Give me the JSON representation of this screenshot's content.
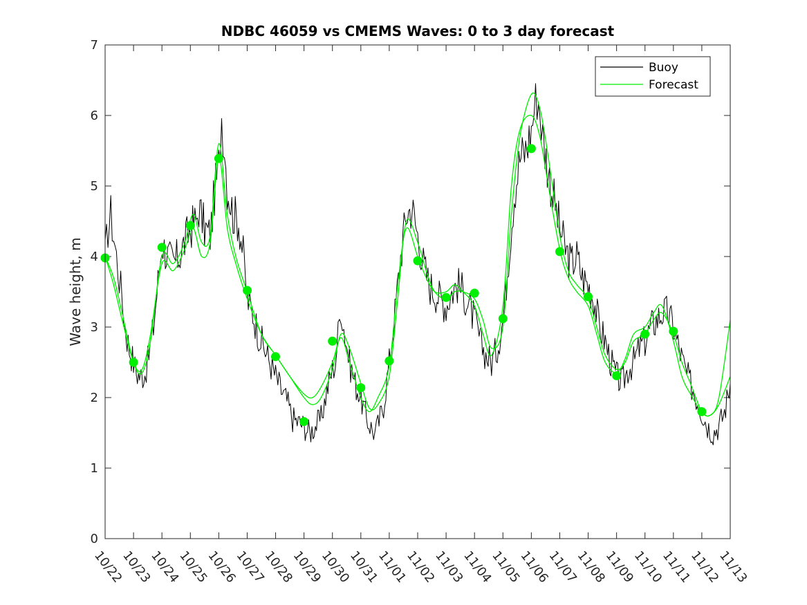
{
  "chart_data": {
    "type": "line",
    "title": "NDBC 46059 vs CMEMS Waves: 0 to 3 day forecast",
    "xlabel": "",
    "ylabel": "Wave height, m",
    "x_unit": "days since 10/22",
    "xlim": [
      0,
      22
    ],
    "ylim": [
      0,
      7
    ],
    "y_ticks": [
      0,
      1,
      2,
      3,
      4,
      5,
      6,
      7
    ],
    "x_tick_labels": [
      "10/22",
      "10/23",
      "10/24",
      "10/25",
      "10/26",
      "10/27",
      "10/28",
      "10/29",
      "10/30",
      "10/31",
      "11/01",
      "11/02",
      "11/03",
      "11/04",
      "11/05",
      "11/06",
      "11/07",
      "11/08",
      "11/09",
      "11/10",
      "11/11",
      "11/12",
      "11/13"
    ],
    "legend": {
      "placement": "top-right",
      "entries": [
        "Buoy",
        "Forecast"
      ]
    },
    "colors": {
      "buoy": "#000000",
      "forecast": "#00ee00",
      "axes": "#262626"
    },
    "series": [
      {
        "name": "Buoy",
        "style": "noisy-line",
        "x": [
          0,
          0.1,
          0.2,
          0.3,
          0.4,
          0.5,
          0.6,
          0.7,
          0.85,
          1.0,
          1.1,
          1.25,
          1.4,
          1.5,
          1.7,
          1.9,
          2.0,
          2.2,
          2.4,
          2.6,
          2.8,
          3.0,
          3.2,
          3.3,
          3.5,
          3.7,
          3.85,
          4.0,
          4.1,
          4.2,
          4.3,
          4.5,
          4.7,
          4.9,
          5.0,
          5.2,
          5.4,
          5.6,
          5.8,
          6.0,
          6.2,
          6.4,
          6.6,
          6.8,
          7.0,
          7.2,
          7.4,
          7.6,
          7.8,
          8.0,
          8.1,
          8.2,
          8.3,
          8.4,
          8.6,
          8.8,
          9.0,
          9.2,
          9.4,
          9.5,
          9.6,
          9.8,
          10.0,
          10.2,
          10.4,
          10.6,
          10.8,
          11.0,
          11.2,
          11.4,
          11.6,
          11.8,
          12.0,
          12.2,
          12.4,
          12.6,
          12.8,
          13.0,
          13.2,
          13.4,
          13.6,
          13.8,
          14.0,
          14.2,
          14.4,
          14.6,
          14.8,
          15.0,
          15.1,
          15.2,
          15.3,
          15.4,
          15.6,
          15.8,
          16.0,
          16.2,
          16.4,
          16.6,
          16.8,
          17.0,
          17.2,
          17.4,
          17.6,
          17.8,
          18.0,
          18.2,
          18.4,
          18.6,
          18.8,
          19.0,
          19.2,
          19.4,
          19.6,
          19.8,
          20.0,
          20.2,
          20.4,
          20.6,
          20.8,
          21.0,
          21.2,
          21.4,
          21.6,
          21.8,
          22.0
        ],
        "y": [
          4.0,
          4.4,
          4.6,
          4.3,
          4.0,
          3.7,
          3.4,
          3.0,
          2.7,
          2.5,
          2.35,
          2.3,
          2.35,
          2.5,
          3.0,
          3.8,
          4.2,
          4.0,
          3.9,
          4.0,
          4.2,
          4.4,
          4.5,
          4.7,
          4.4,
          4.3,
          4.9,
          5.3,
          6.0,
          5.6,
          5.0,
          4.6,
          4.5,
          3.9,
          3.4,
          3.2,
          2.9,
          2.7,
          2.5,
          2.3,
          2.1,
          1.95,
          1.7,
          1.65,
          1.6,
          1.5,
          1.6,
          1.7,
          2.1,
          2.4,
          2.5,
          2.9,
          3.3,
          3.0,
          2.5,
          2.2,
          2.0,
          1.7,
          1.55,
          1.5,
          1.6,
          1.9,
          2.5,
          3.2,
          4.0,
          4.6,
          4.7,
          4.3,
          3.9,
          3.6,
          3.5,
          3.4,
          3.3,
          3.5,
          3.6,
          3.5,
          3.3,
          3.1,
          2.8,
          2.6,
          2.5,
          2.7,
          3.1,
          4.0,
          4.9,
          5.4,
          5.5,
          5.8,
          6.1,
          6.3,
          6.1,
          5.7,
          5.2,
          4.8,
          4.4,
          4.1,
          3.9,
          4.0,
          3.7,
          3.6,
          3.4,
          3.0,
          2.8,
          2.5,
          2.3,
          2.2,
          2.4,
          2.5,
          2.7,
          2.8,
          3.0,
          3.1,
          3.2,
          3.2,
          3.0,
          2.7,
          2.4,
          2.2,
          2.0,
          1.8,
          1.6,
          1.5,
          1.6,
          1.8,
          2.2
        ]
      },
      {
        "name": "Forecast",
        "style": "line",
        "x": [
          0,
          0.3,
          0.6,
          1.0,
          1.3,
          1.6,
          2.0,
          2.4,
          2.8,
          3.1,
          3.4,
          3.7,
          4.0,
          4.3,
          4.6,
          5.0,
          5.5,
          6.0,
          6.5,
          7.0,
          7.3,
          7.6,
          8.0,
          8.3,
          8.6,
          9.0,
          9.3,
          9.6,
          10.0,
          10.3,
          10.6,
          11.0,
          11.3,
          11.6,
          12.0,
          12.3,
          12.6,
          13.0,
          13.3,
          13.6,
          14.0,
          14.3,
          14.6,
          15.0,
          15.3,
          15.6,
          16.0,
          16.3,
          16.6,
          17.0,
          17.3,
          17.6,
          18.0,
          18.3,
          18.6,
          19.0,
          19.3,
          19.6,
          20.0,
          20.3,
          20.6,
          21.0,
          21.3,
          21.6,
          22.0
        ],
        "y": [
          4.0,
          3.7,
          3.2,
          2.5,
          2.35,
          2.8,
          4.0,
          3.9,
          4.2,
          4.6,
          4.2,
          4.3,
          5.6,
          4.6,
          4.0,
          3.5,
          2.9,
          2.6,
          2.3,
          2.0,
          1.9,
          2.0,
          2.4,
          2.9,
          2.7,
          2.2,
          1.85,
          1.9,
          2.3,
          3.4,
          4.5,
          4.2,
          3.8,
          3.5,
          3.4,
          3.5,
          3.5,
          3.4,
          3.1,
          2.7,
          3.0,
          4.6,
          5.7,
          6.3,
          6.1,
          5.4,
          4.3,
          3.8,
          3.6,
          3.4,
          3.0,
          2.6,
          2.4,
          2.5,
          2.8,
          2.9,
          3.1,
          3.2,
          2.9,
          2.5,
          2.2,
          1.8,
          1.75,
          1.9,
          2.3
        ]
      },
      {
        "name": "",
        "style": "line",
        "x": [
          0,
          0.3,
          0.6,
          1.0,
          1.3,
          1.6,
          2.0,
          2.4,
          2.8,
          3.1,
          3.4,
          3.7,
          4.0,
          4.3,
          4.6,
          5.0,
          5.5,
          6.0,
          6.5,
          7.0,
          7.3,
          7.6,
          8.0,
          8.3,
          8.6,
          9.0,
          9.3,
          9.6,
          10.0,
          10.3,
          10.6,
          11.0,
          11.3,
          11.6,
          12.0,
          12.3,
          12.6,
          13.0,
          13.3,
          13.6,
          14.0,
          14.3,
          14.6,
          15.0,
          15.3,
          15.6,
          16.0,
          16.3,
          16.6,
          17.0,
          17.3,
          17.6,
          18.0,
          18.3,
          18.6,
          19.0,
          19.3,
          19.6,
          20.0,
          20.3,
          20.6,
          21.0,
          21.3,
          21.6,
          22.0
        ],
        "y": [
          4.0,
          3.6,
          3.1,
          2.5,
          2.4,
          2.9,
          3.9,
          3.8,
          4.1,
          4.4,
          4.0,
          4.2,
          5.4,
          4.4,
          3.9,
          3.4,
          2.9,
          2.6,
          2.3,
          2.05,
          2.0,
          2.15,
          2.5,
          2.85,
          2.5,
          2.0,
          1.8,
          2.0,
          2.45,
          3.6,
          4.4,
          4.0,
          3.7,
          3.5,
          3.5,
          3.6,
          3.5,
          3.3,
          2.9,
          2.6,
          3.3,
          5.0,
          5.8,
          6.0,
          5.7,
          5.0,
          4.1,
          3.7,
          3.5,
          3.3,
          2.9,
          2.5,
          2.35,
          2.55,
          2.9,
          3.0,
          3.2,
          3.3,
          2.8,
          2.3,
          2.05,
          1.8,
          1.75,
          2.0,
          3.1
        ]
      }
    ],
    "markers": {
      "name": "",
      "x": [
        0,
        1,
        2,
        3,
        4,
        5,
        6,
        7,
        8,
        9,
        10,
        11,
        12,
        13,
        14,
        15,
        16,
        17,
        18,
        19,
        20,
        21
      ],
      "y": [
        3.98,
        2.5,
        4.13,
        4.44,
        5.39,
        3.52,
        2.58,
        1.66,
        2.8,
        2.14,
        2.52,
        3.94,
        3.42,
        3.48,
        3.12,
        5.53,
        4.07,
        3.43,
        2.31,
        2.9,
        2.94,
        1.8
      ]
    }
  }
}
